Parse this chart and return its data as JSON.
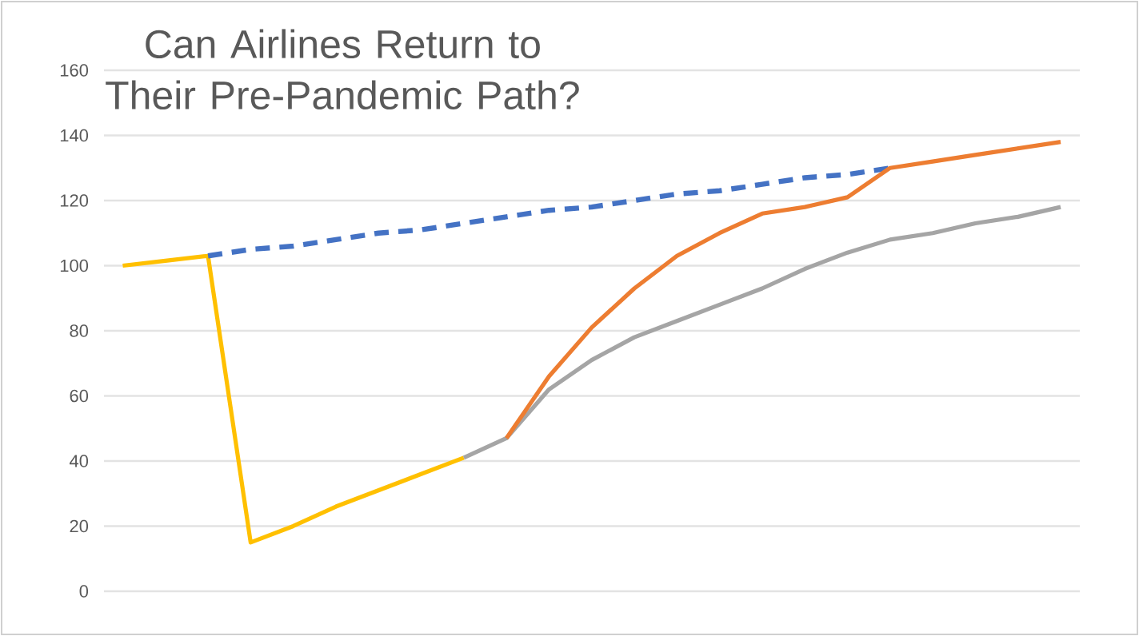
{
  "chart_data": {
    "type": "line",
    "title": "Can Airlines Return to Their Pre-Pandemic Path?",
    "categories": [
      null,
      null,
      null,
      null,
      null,
      null,
      null,
      null,
      null,
      null,
      null,
      null,
      null,
      null,
      null,
      null,
      null,
      null,
      null,
      null,
      null,
      null,
      null
    ],
    "ylim": [
      0,
      160
    ],
    "yticks": [
      0,
      20,
      40,
      60,
      80,
      100,
      120,
      140,
      160
    ],
    "grid": "y",
    "tick_labels": "y",
    "series": [
      {
        "color": "#ffc000",
        "values": [
          100,
          101.5,
          103,
          15,
          20,
          26,
          31,
          36,
          41,
          null,
          null,
          null,
          null,
          null,
          null,
          null,
          null,
          null,
          null,
          null,
          null,
          null,
          null
        ]
      },
      {
        "color": "#4472c4",
        "line_style": "dashed",
        "values": [
          null,
          null,
          103,
          105,
          106,
          108,
          110,
          111,
          113,
          115,
          117,
          118,
          120,
          122,
          123,
          125,
          127,
          128,
          130,
          null,
          null,
          null,
          null
        ]
      },
      {
        "color": "#a5a5a5",
        "values": [
          null,
          null,
          null,
          null,
          null,
          null,
          null,
          null,
          41,
          47,
          62,
          71,
          78,
          83,
          88,
          93,
          99,
          104,
          108,
          110,
          113,
          115,
          118
        ]
      },
      {
        "color": "#ed7d31",
        "values": [
          null,
          null,
          null,
          null,
          null,
          null,
          null,
          null,
          null,
          47,
          66,
          81,
          93,
          103,
          110,
          116,
          118,
          121,
          130,
          132,
          134,
          136,
          138
        ]
      }
    ]
  }
}
